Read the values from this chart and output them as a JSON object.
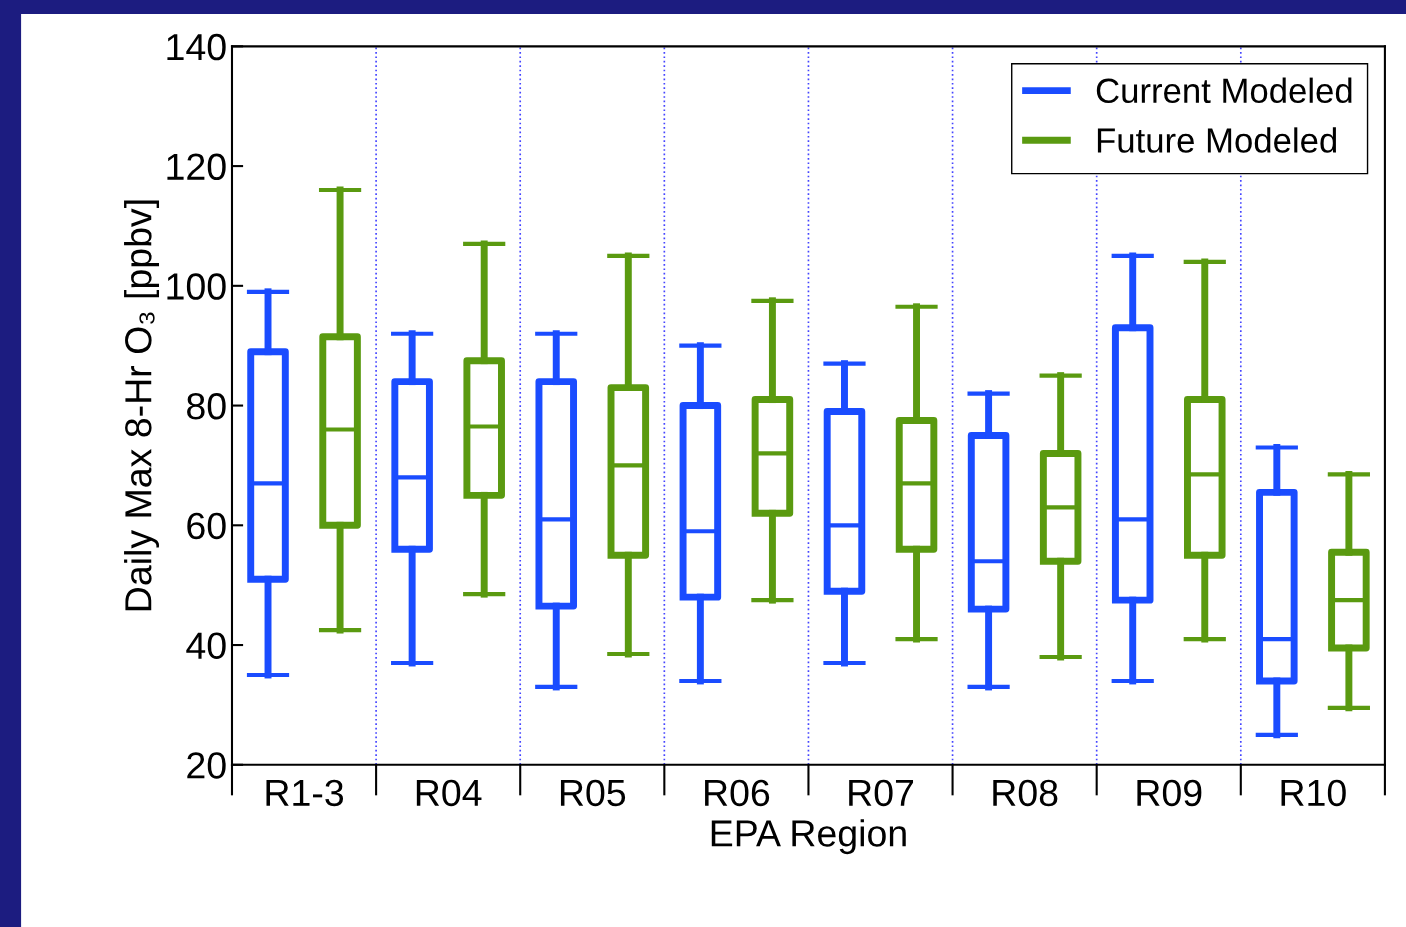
{
  "chart_data": {
    "type": "box",
    "xlabel": "EPA Region",
    "ylabel": "Daily Max 8-Hr O₃ [ppbv]",
    "categories": [
      "R1-3",
      "R04",
      "R05",
      "R06",
      "R07",
      "R08",
      "R09",
      "R10"
    ],
    "ylim": [
      20,
      140
    ],
    "yticks": [
      20,
      40,
      60,
      80,
      100,
      120,
      140
    ],
    "grid": "x",
    "legend": "top right",
    "series": [
      {
        "name": "Current Modeled",
        "color": "#1a4cff",
        "boxes": [
          {
            "low": 35,
            "q1": 51,
            "median": 67,
            "q3": 89,
            "high": 99
          },
          {
            "low": 37,
            "q1": 56,
            "median": 68,
            "q3": 84,
            "high": 92
          },
          {
            "low": 33,
            "q1": 46.5,
            "median": 61,
            "q3": 84,
            "high": 92
          },
          {
            "low": 34,
            "q1": 48,
            "median": 59,
            "q3": 80,
            "high": 90
          },
          {
            "low": 37,
            "q1": 49,
            "median": 60,
            "q3": 79,
            "high": 87
          },
          {
            "low": 33,
            "q1": 46,
            "median": 54,
            "q3": 75,
            "high": 82
          },
          {
            "low": 34,
            "q1": 47.5,
            "median": 61,
            "q3": 93,
            "high": 105
          },
          {
            "low": 25,
            "q1": 34,
            "median": 41,
            "q3": 65.5,
            "high": 73
          }
        ]
      },
      {
        "name": "Future Modeled",
        "color": "#5a9a10",
        "boxes": [
          {
            "low": 42.5,
            "q1": 60,
            "median": 76,
            "q3": 91.5,
            "high": 116
          },
          {
            "low": 48.5,
            "q1": 65,
            "median": 76.5,
            "q3": 87.5,
            "high": 107
          },
          {
            "low": 38.5,
            "q1": 55,
            "median": 70,
            "q3": 83,
            "high": 105
          },
          {
            "low": 47.5,
            "q1": 62,
            "median": 72,
            "q3": 81,
            "high": 97.5
          },
          {
            "low": 41,
            "q1": 56,
            "median": 67,
            "q3": 77.5,
            "high": 96.5
          },
          {
            "low": 38,
            "q1": 54,
            "median": 63,
            "q3": 72,
            "high": 85
          },
          {
            "low": 41,
            "q1": 55,
            "median": 68.5,
            "q3": 81,
            "high": 104
          },
          {
            "low": 29.5,
            "q1": 39.5,
            "median": 47.5,
            "q3": 55.5,
            "high": 68.5
          }
        ]
      }
    ]
  }
}
